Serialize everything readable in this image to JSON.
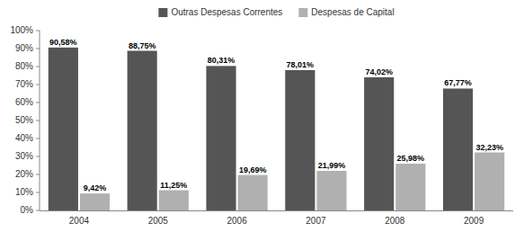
{
  "chart_data": {
    "type": "bar",
    "categories": [
      "2004",
      "2005",
      "2006",
      "2007",
      "2008",
      "2009"
    ],
    "series": [
      {
        "name": "Outras Despesas Correntes",
        "color": "#555555",
        "values": [
          90.58,
          88.75,
          80.31,
          78.01,
          74.02,
          67.77
        ],
        "value_labels": [
          "90,58%",
          "88,75%",
          "80,31%",
          "78,01%",
          "74,02%",
          "67,77%"
        ]
      },
      {
        "name": "Despesas de Capital",
        "color": "#b0b0b0",
        "values": [
          9.42,
          11.25,
          19.69,
          21.99,
          25.98,
          32.23
        ],
        "value_labels": [
          "9,42%",
          "11,25%",
          "19,69%",
          "21,99%",
          "25,98%",
          "32,23%"
        ]
      }
    ],
    "ylim": [
      0,
      100
    ],
    "yticks": [
      {
        "value": 0,
        "label": "0%"
      },
      {
        "value": 10,
        "label": "10%"
      },
      {
        "value": 20,
        "label": "20%"
      },
      {
        "value": 30,
        "label": "30%"
      },
      {
        "value": 40,
        "label": "40%"
      },
      {
        "value": 50,
        "label": "50%"
      },
      {
        "value": 60,
        "label": "60%"
      },
      {
        "value": 70,
        "label": "70%"
      },
      {
        "value": 80,
        "label": "80%"
      },
      {
        "value": 90,
        "label": "90%"
      },
      {
        "value": 100,
        "label": "100%"
      }
    ],
    "grid": false,
    "legend": "top",
    "data_labels": true
  }
}
